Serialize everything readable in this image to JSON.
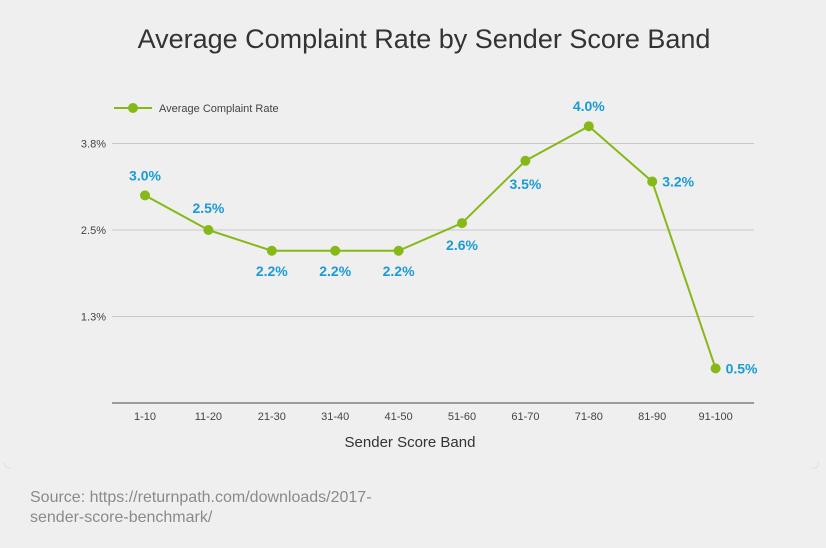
{
  "source": "Source: https://returnpath.com/downloads/2017-sender-score-benchmark/",
  "colors": {
    "line": "#86b817",
    "label": "#1a9bd6",
    "grid": "#c8c8c8",
    "text": "#333333"
  },
  "chart_data": {
    "type": "line",
    "title": "Average Complaint Rate by Sender Score Band",
    "xlabel": "Sender Score Band",
    "ylabel": "",
    "categories": [
      "1-10",
      "11-20",
      "21-30",
      "31-40",
      "41-50",
      "51-60",
      "61-70",
      "71-80",
      "81-90",
      "91-100"
    ],
    "series": [
      {
        "name": "Average Complaint Rate",
        "values": [
          3.0,
          2.5,
          2.2,
          2.2,
          2.2,
          2.6,
          3.5,
          4.0,
          3.2,
          0.5
        ],
        "labels": [
          "3.0%",
          "2.5%",
          "2.2%",
          "2.2%",
          "2.2%",
          "2.6%",
          "3.5%",
          "4.0%",
          "3.2%",
          "0.5%"
        ]
      }
    ],
    "yticks": [
      {
        "value": 1.25,
        "label": "1.3%"
      },
      {
        "value": 2.5,
        "label": "2.5%"
      },
      {
        "value": 3.75,
        "label": "3.8%"
      }
    ],
    "ylim": [
      0,
      4.5
    ],
    "grid": true,
    "legend": "top-left"
  }
}
